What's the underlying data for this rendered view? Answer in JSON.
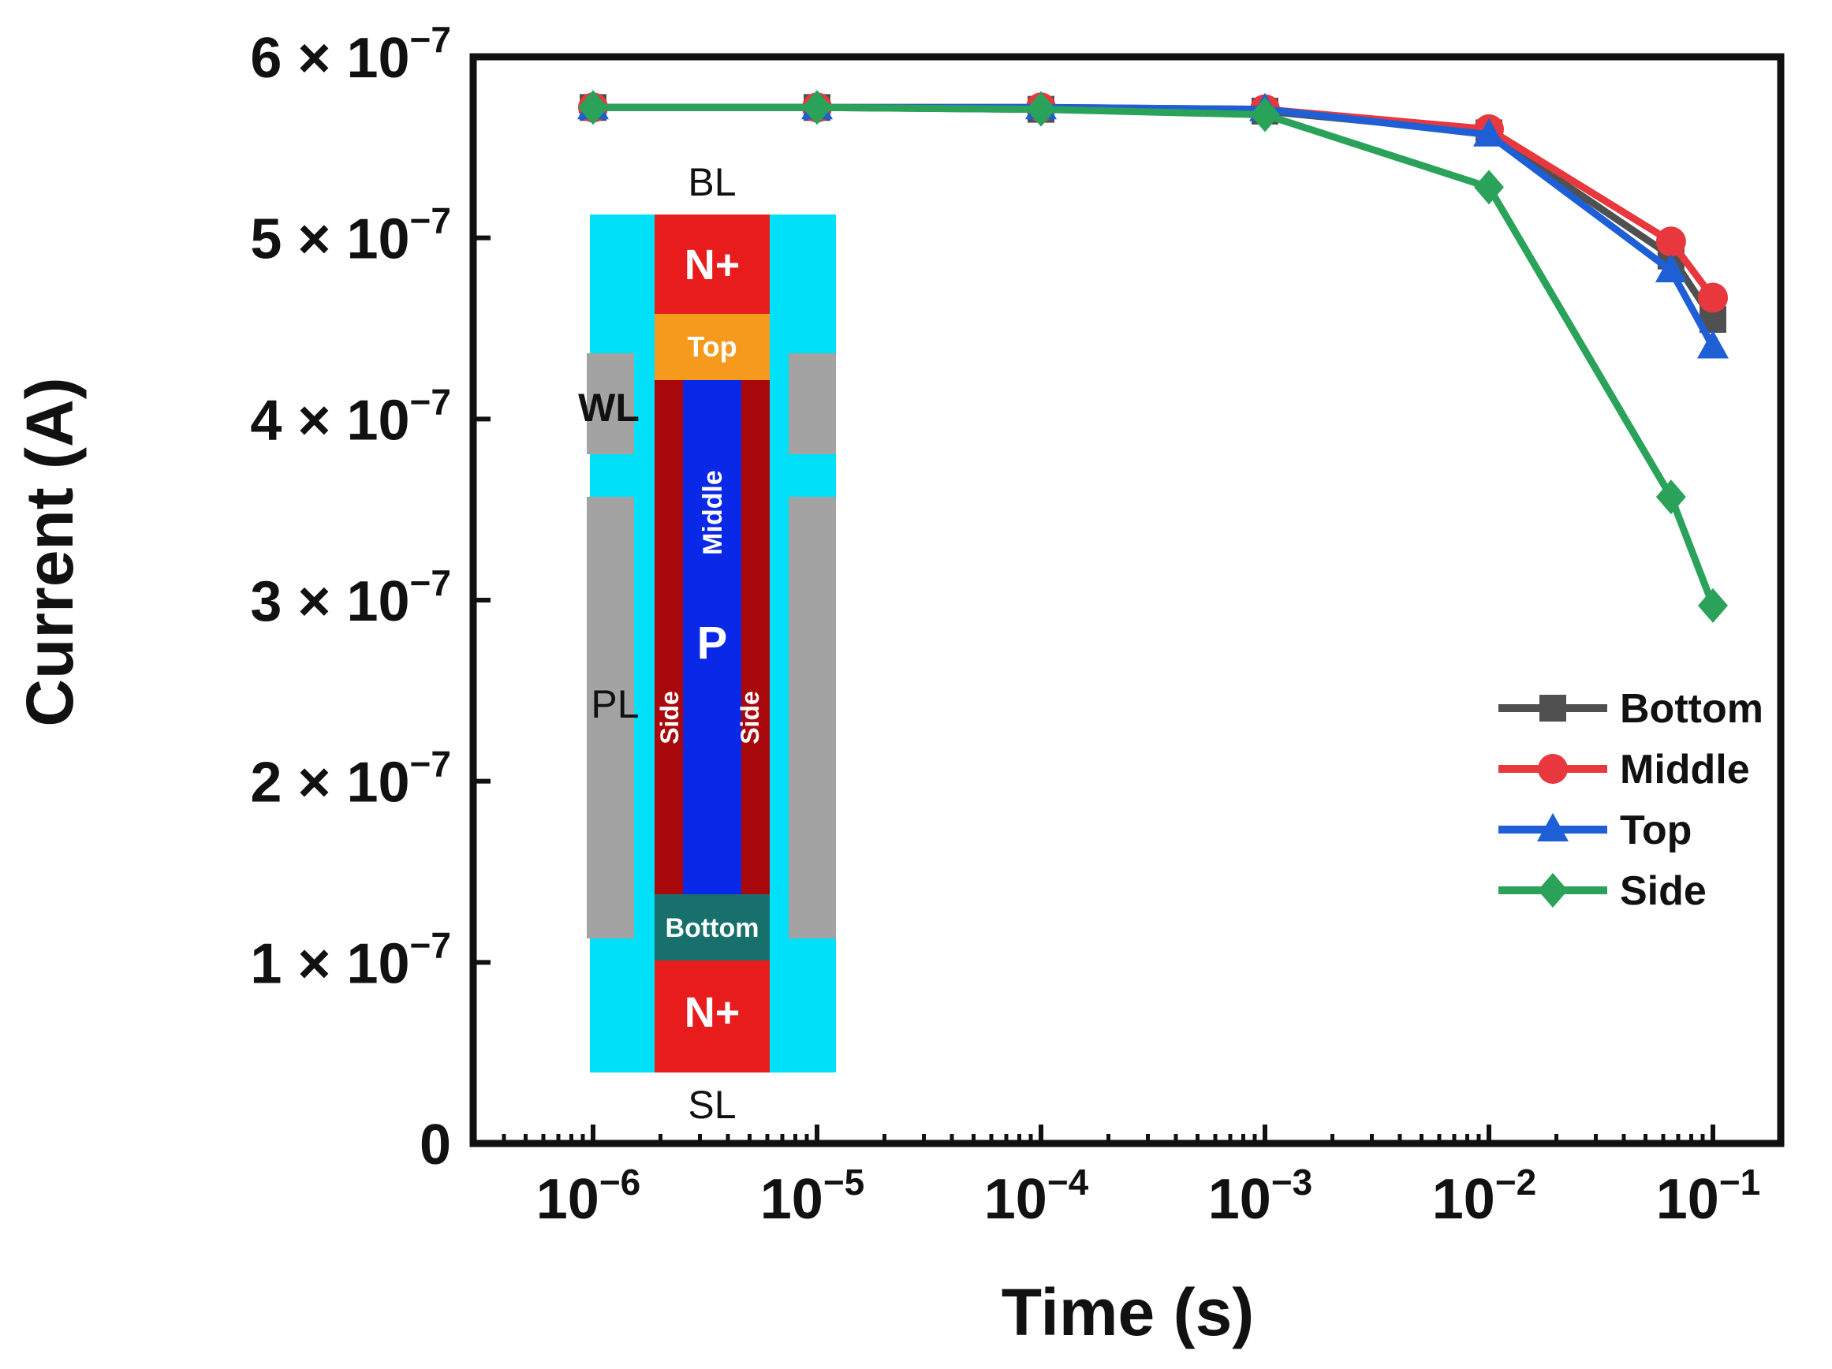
{
  "chart_data": {
    "type": "line",
    "title": "",
    "xlabel": "Time (s)",
    "ylabel": "Current (A)",
    "xscale": "log",
    "xlim": [
      3.5e-07,
      0.3
    ],
    "ylim": [
      0,
      6e-07
    ],
    "x": [
      1e-06,
      1e-05,
      0.0001,
      0.001,
      0.01,
      0.065,
      0.1
    ],
    "x_ticks": [
      {
        "base": "10",
        "exp": "−6",
        "value": 1e-06
      },
      {
        "base": "10",
        "exp": "−5",
        "value": 1e-05
      },
      {
        "base": "10",
        "exp": "−4",
        "value": 0.0001
      },
      {
        "base": "10",
        "exp": "−3",
        "value": 0.001
      },
      {
        "base": "10",
        "exp": "−2",
        "value": 0.01
      },
      {
        "base": "10",
        "exp": "−1",
        "value": 0.1
      }
    ],
    "y_ticks": [
      {
        "label": "0",
        "value": 0
      },
      {
        "mant": "1 × 10",
        "exp": "−7",
        "value": 1e-07
      },
      {
        "mant": "2 × 10",
        "exp": "−7",
        "value": 2e-07
      },
      {
        "mant": "3 × 10",
        "exp": "−7",
        "value": 3e-07
      },
      {
        "mant": "4 × 10",
        "exp": "−7",
        "value": 4e-07
      },
      {
        "mant": "5 × 10",
        "exp": "−7",
        "value": 5e-07
      },
      {
        "mant": "6 × 10",
        "exp": "−7",
        "value": 6e-07
      }
    ],
    "legend_position": "right-middle",
    "series": [
      {
        "name": "Bottom",
        "color": "#505050",
        "marker": "square",
        "values": [
          5.72e-07,
          5.72e-07,
          5.71e-07,
          5.7e-07,
          5.58e-07,
          4.9e-07,
          4.55e-07
        ]
      },
      {
        "name": "Middle",
        "color": "#e8383d",
        "marker": "circle",
        "values": [
          5.72e-07,
          5.72e-07,
          5.72e-07,
          5.71e-07,
          5.6e-07,
          4.98e-07,
          4.67e-07
        ]
      },
      {
        "name": "Top",
        "color": "#1f5fd6",
        "marker": "triangle",
        "values": [
          5.72e-07,
          5.72e-07,
          5.72e-07,
          5.71e-07,
          5.57e-07,
          4.82e-07,
          4.4e-07
        ]
      },
      {
        "name": "Side",
        "color": "#2aa25a",
        "marker": "diamond",
        "values": [
          5.72e-07,
          5.72e-07,
          5.71e-07,
          5.68e-07,
          5.28e-07,
          3.57e-07,
          2.97e-07
        ]
      }
    ]
  },
  "inset": {
    "bl_label": "BL",
    "sl_label": "SL",
    "wl_label": "WL",
    "pl_label": "PL",
    "top_n_label": "N+",
    "bottom_n_label": "N+",
    "top_region": "Top",
    "middle_region": "Middle",
    "p_region": "P",
    "side_left": "Side",
    "side_right": "Side",
    "bottom_region": "Bottom",
    "colors": {
      "oxide": "#00e0f8",
      "gate": "#a3a3a3",
      "n_plus": "#e81c1c",
      "top": "#f59a1c",
      "side": "#a8080b",
      "p_body": "#0a28e8",
      "bottom": "#17706b"
    }
  }
}
